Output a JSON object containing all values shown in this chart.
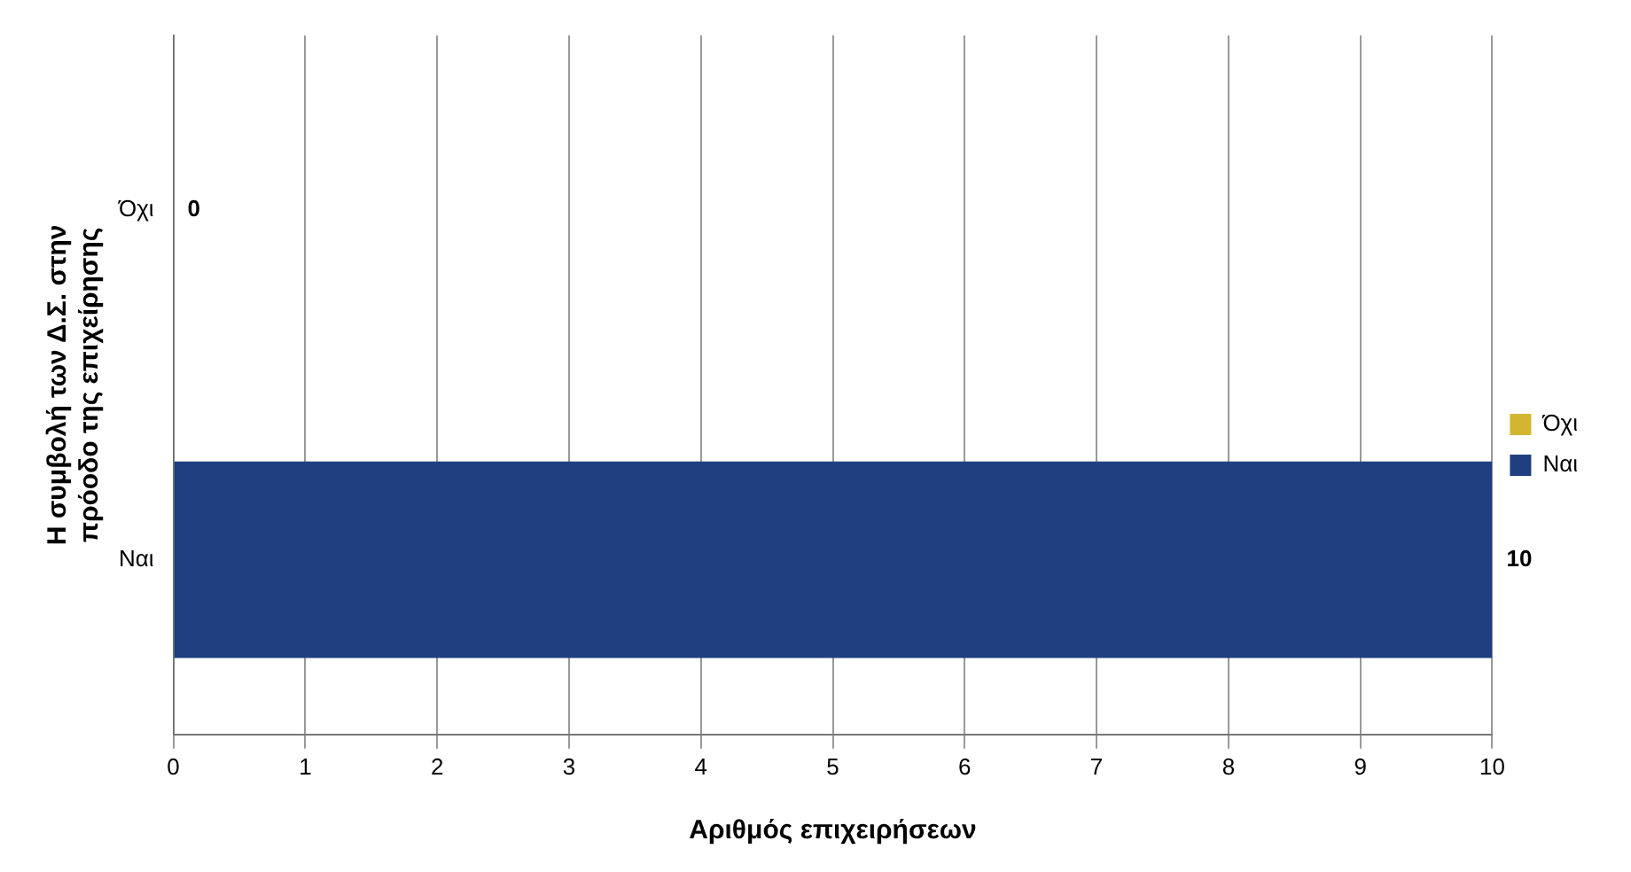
{
  "chart_data": {
    "type": "bar",
    "orientation": "horizontal",
    "stacked": true,
    "ylabel": "Η συμβολή των Δ.Σ. στην πρόοδο της επιχείρησης",
    "xlabel": "Αριθμός επιχειρήσεων",
    "categories": [
      "Όχι",
      "Ναι"
    ],
    "series": [
      {
        "name": "Όχι",
        "color": "#d2b630",
        "values": [
          0,
          null
        ]
      },
      {
        "name": "Ναι",
        "color": "#1f3f80",
        "values": [
          null,
          10
        ]
      }
    ],
    "xlim": [
      0,
      10
    ],
    "xticks": [
      0,
      1,
      2,
      3,
      4,
      5,
      6,
      7,
      8,
      9,
      10
    ],
    "grid": "x",
    "legend": "right",
    "data_labels": true
  }
}
